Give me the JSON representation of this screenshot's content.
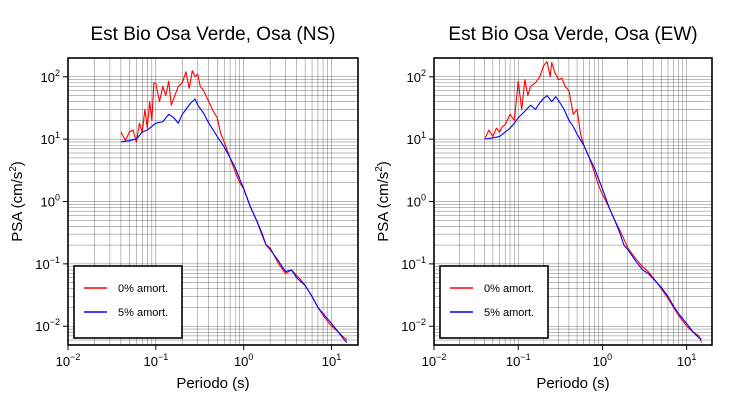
{
  "chart_data": [
    {
      "type": "line",
      "title": "Est Bio Osa Verde, Osa (NS)",
      "xlabel": "Periodo (s)",
      "ylabel": "PSA (cm/s²)",
      "xscale": "log",
      "yscale": "log",
      "xlim": [
        0.01,
        20
      ],
      "ylim": [
        0.005,
        200
      ],
      "grid": true,
      "legend_position": "bottom-left",
      "x_ticks": [
        "10^-2",
        "10^-1",
        "10^0",
        "10^1"
      ],
      "y_ticks": [
        "10^-2",
        "10^-1",
        "10^0",
        "10^1",
        "10^2"
      ],
      "series": [
        {
          "name": "0% amort.",
          "color": "#ff0000",
          "x": [
            0.04,
            0.045,
            0.05,
            0.055,
            0.06,
            0.065,
            0.07,
            0.075,
            0.08,
            0.085,
            0.09,
            0.095,
            0.1,
            0.11,
            0.12,
            0.13,
            0.14,
            0.15,
            0.16,
            0.18,
            0.2,
            0.22,
            0.24,
            0.26,
            0.28,
            0.3,
            0.32,
            0.35,
            0.4,
            0.45,
            0.5,
            0.55,
            0.6,
            0.7,
            0.8,
            0.9,
            1.0,
            1.2,
            1.4,
            1.6,
            1.8,
            2.0,
            2.5,
            3.0,
            3.5,
            4.0,
            4.5,
            5.0,
            6.0,
            7.0,
            8.0,
            9.0,
            10.0,
            12.0,
            14.0,
            15.0
          ],
          "y": [
            13,
            9.5,
            13,
            14,
            9,
            18,
            13,
            30,
            15,
            40,
            20,
            80,
            78,
            40,
            70,
            50,
            85,
            35,
            45,
            70,
            80,
            120,
            65,
            125,
            100,
            110,
            70,
            60,
            40,
            28,
            22,
            12,
            9,
            5,
            3,
            2,
            1.6,
            0.8,
            0.5,
            0.3,
            0.2,
            0.18,
            0.1,
            0.07,
            0.08,
            0.065,
            0.055,
            0.045,
            0.03,
            0.02,
            0.015,
            0.012,
            0.01,
            0.008,
            0.0065,
            0.006
          ]
        },
        {
          "name": "5% amort.",
          "color": "#0000ff",
          "x": [
            0.04,
            0.05,
            0.06,
            0.07,
            0.08,
            0.09,
            0.1,
            0.12,
            0.14,
            0.16,
            0.18,
            0.2,
            0.22,
            0.25,
            0.28,
            0.3,
            0.35,
            0.4,
            0.45,
            0.5,
            0.6,
            0.7,
            0.8,
            0.9,
            1.0,
            1.2,
            1.4,
            1.6,
            1.8,
            2.0,
            2.5,
            3.0,
            3.5,
            4.0,
            5.0,
            6.0,
            7.0,
            8.0,
            10.0,
            12.0,
            14.0,
            15.0
          ],
          "y": [
            9,
            9.5,
            10,
            13,
            14,
            16,
            18,
            19,
            25,
            22,
            18,
            25,
            30,
            38,
            44,
            35,
            26,
            18,
            14,
            11,
            7.5,
            5,
            3.5,
            2.3,
            1.6,
            0.8,
            0.5,
            0.32,
            0.2,
            0.17,
            0.11,
            0.075,
            0.08,
            0.06,
            0.045,
            0.03,
            0.02,
            0.016,
            0.011,
            0.008,
            0.006,
            0.0055
          ]
        }
      ]
    },
    {
      "type": "line",
      "title": "Est Bio Osa Verde, Osa (EW)",
      "xlabel": "Periodo (s)",
      "ylabel": "PSA (cm/s²)",
      "xscale": "log",
      "yscale": "log",
      "xlim": [
        0.01,
        20
      ],
      "ylim": [
        0.005,
        200
      ],
      "grid": true,
      "legend_position": "bottom-left",
      "x_ticks": [
        "10^-2",
        "10^-1",
        "10^0",
        "10^1"
      ],
      "y_ticks": [
        "10^-2",
        "10^-1",
        "10^0",
        "10^1",
        "10^2"
      ],
      "series": [
        {
          "name": "0% amort.",
          "color": "#ff0000",
          "x": [
            0.04,
            0.045,
            0.05,
            0.055,
            0.06,
            0.065,
            0.07,
            0.08,
            0.09,
            0.1,
            0.11,
            0.12,
            0.13,
            0.14,
            0.16,
            0.18,
            0.2,
            0.22,
            0.24,
            0.25,
            0.27,
            0.3,
            0.33,
            0.36,
            0.4,
            0.45,
            0.5,
            0.55,
            0.6,
            0.7,
            0.8,
            0.9,
            1.0,
            1.2,
            1.4,
            1.6,
            1.8,
            2.0,
            2.5,
            3.0,
            3.5,
            4.0,
            5.0,
            6.0,
            7.0,
            8.0,
            10.0,
            12.0,
            14.0,
            15.0
          ],
          "y": [
            10,
            14,
            11,
            15,
            13,
            16,
            17,
            25,
            20,
            85,
            30,
            90,
            50,
            70,
            80,
            100,
            150,
            175,
            100,
            170,
            120,
            90,
            95,
            70,
            60,
            25,
            30,
            12,
            8,
            5,
            3,
            1.8,
            1.3,
            0.8,
            0.5,
            0.35,
            0.25,
            0.18,
            0.12,
            0.09,
            0.075,
            0.06,
            0.04,
            0.028,
            0.02,
            0.015,
            0.01,
            0.008,
            0.007,
            0.0055
          ]
        },
        {
          "name": "5% amort.",
          "color": "#0000ff",
          "x": [
            0.04,
            0.05,
            0.06,
            0.07,
            0.08,
            0.09,
            0.1,
            0.12,
            0.14,
            0.16,
            0.18,
            0.2,
            0.22,
            0.25,
            0.28,
            0.3,
            0.35,
            0.4,
            0.45,
            0.5,
            0.6,
            0.7,
            0.8,
            0.9,
            1.0,
            1.2,
            1.4,
            1.6,
            1.8,
            2.0,
            2.5,
            3.0,
            3.5,
            4.0,
            5.0,
            6.0,
            7.0,
            8.0,
            10.0,
            12.0,
            14.0,
            15.0
          ],
          "y": [
            10,
            10.5,
            11,
            13,
            15,
            18,
            22,
            28,
            35,
            30,
            38,
            45,
            50,
            40,
            48,
            42,
            30,
            20,
            16,
            12,
            8,
            5,
            3.5,
            2.3,
            1.6,
            0.8,
            0.5,
            0.32,
            0.2,
            0.17,
            0.11,
            0.08,
            0.07,
            0.058,
            0.042,
            0.03,
            0.021,
            0.016,
            0.011,
            0.008,
            0.0065,
            0.0062
          ]
        }
      ]
    }
  ]
}
